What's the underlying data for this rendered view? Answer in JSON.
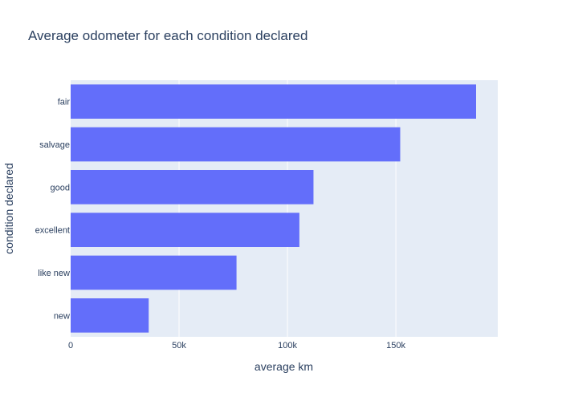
{
  "chart_data": {
    "type": "bar",
    "orientation": "horizontal",
    "title": "Average odometer for each condition declared",
    "xlabel": "average km",
    "ylabel": "condition declared",
    "categories": [
      "fair",
      "salvage",
      "good",
      "excellent",
      "like new",
      "new"
    ],
    "values": [
      187000,
      152000,
      112000,
      105500,
      76500,
      36000
    ],
    "xlim": [
      0,
      197000
    ],
    "x_ticks": [
      0,
      50000,
      100000,
      150000
    ],
    "x_tick_labels": [
      "0",
      "50k",
      "100k",
      "150k"
    ],
    "grid": true,
    "legend": "none"
  },
  "colors": {
    "bar": "#636efa",
    "plot_background": "#e5ecf6",
    "grid": "#ffffff",
    "text": "#2a3f5f",
    "tick_text": "#2a3f5f",
    "title_text": "#2a3f5f"
  }
}
